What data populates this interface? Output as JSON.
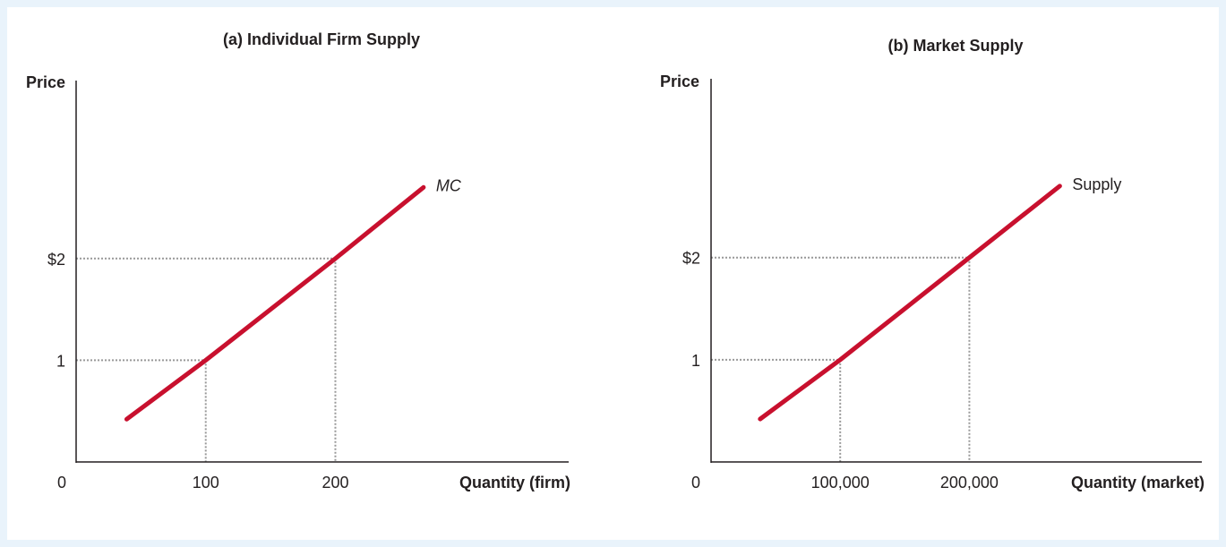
{
  "colors": {
    "curve": "#c8102e",
    "axis": "#231f20",
    "guide": "#999999",
    "frame": "#e9f3fb"
  },
  "chart_data": [
    {
      "type": "line",
      "title": "(a) Individual Firm Supply",
      "xlabel": "Quantity (firm)",
      "ylabel": "Price",
      "origin_label": "0",
      "x_ticks": [
        {
          "value": 100,
          "label": "100"
        },
        {
          "value": 200,
          "label": "200"
        }
      ],
      "y_ticks": [
        {
          "value": 1,
          "label": "1"
        },
        {
          "value": 2,
          "label": "$2"
        }
      ],
      "xlim": [
        0,
        380
      ],
      "ylim": [
        0,
        3.75
      ],
      "grid": false,
      "series": [
        {
          "name": "MC",
          "label_italic": true,
          "x": [
            39,
            100,
            200,
            268
          ],
          "y": [
            0.42,
            1,
            2,
            2.7
          ]
        }
      ],
      "guides": [
        {
          "x": 100,
          "y": 1
        },
        {
          "x": 200,
          "y": 2
        }
      ]
    },
    {
      "type": "line",
      "title": "(b) Market Supply",
      "xlabel": "Quantity (market)",
      "ylabel": "Price",
      "origin_label": "0",
      "x_ticks": [
        {
          "value": 100000,
          "label": "100,000"
        },
        {
          "value": 200000,
          "label": "200,000"
        }
      ],
      "y_ticks": [
        {
          "value": 1,
          "label": "1"
        },
        {
          "value": 2,
          "label": "$2"
        }
      ],
      "xlim": [
        0,
        380000
      ],
      "ylim": [
        0,
        3.75
      ],
      "grid": false,
      "series": [
        {
          "name": "Supply",
          "label_italic": false,
          "x": [
            38000,
            100000,
            200000,
            270000
          ],
          "y": [
            0.42,
            1,
            2,
            2.7
          ]
        }
      ],
      "guides": [
        {
          "x": 100000,
          "y": 1
        },
        {
          "x": 200000,
          "y": 2
        }
      ]
    }
  ]
}
